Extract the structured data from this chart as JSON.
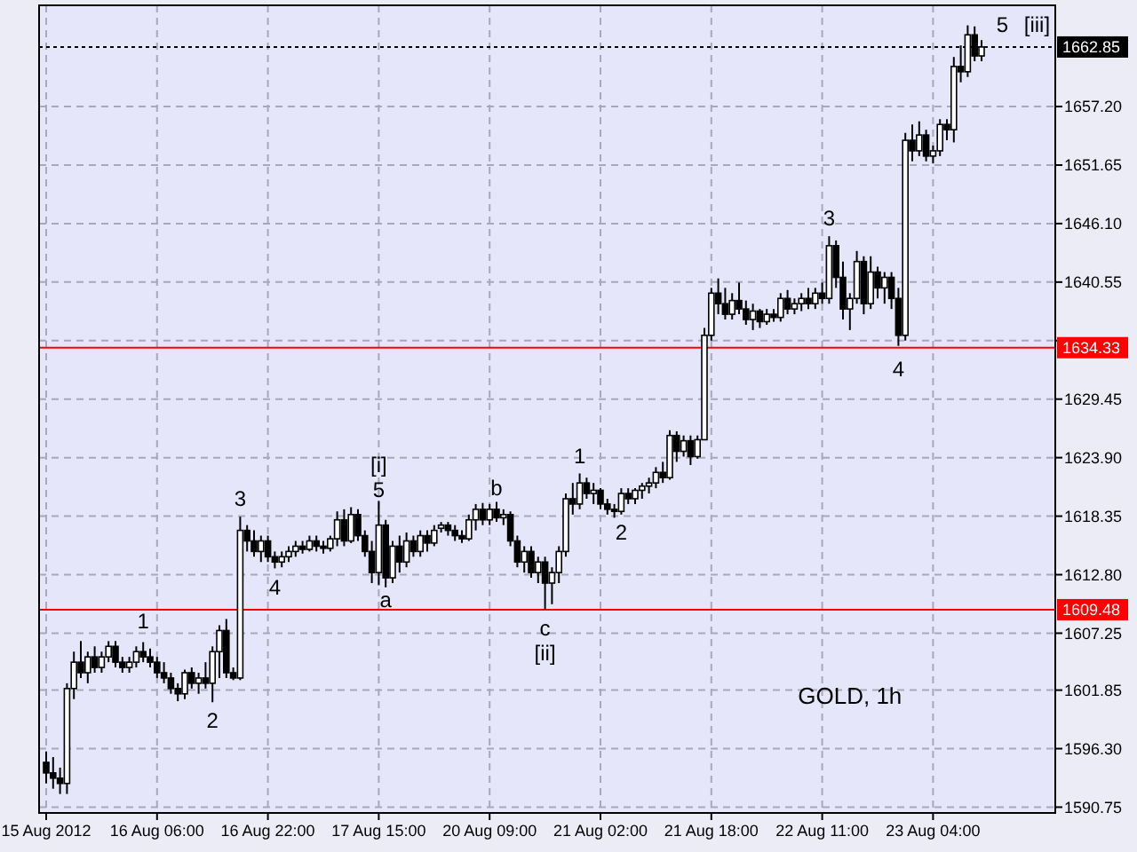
{
  "chart_data": {
    "type": "candlestick",
    "color": "#000000",
    "categories": [
      "15 Aug 2012",
      null,
      null,
      null,
      null,
      null,
      null,
      null,
      null,
      null,
      null,
      null,
      null,
      null,
      null,
      null,
      "16 Aug 06:00",
      null,
      null,
      null,
      null,
      null,
      null,
      null,
      null,
      null,
      null,
      null,
      null,
      null,
      null,
      null,
      "16 Aug 22:00",
      null,
      null,
      null,
      null,
      null,
      null,
      null,
      null,
      null,
      null,
      null,
      null,
      null,
      null,
      null,
      "17 Aug 15:00",
      null,
      null,
      null,
      null,
      null,
      null,
      null,
      null,
      null,
      null,
      null,
      null,
      null,
      null,
      null,
      "20 Aug 09:00",
      null,
      null,
      null,
      null,
      null,
      null,
      null,
      null,
      null,
      null,
      null,
      null,
      null,
      null,
      null,
      "21 Aug 02:00",
      null,
      null,
      null,
      null,
      null,
      null,
      null,
      null,
      null,
      null,
      null,
      null,
      null,
      null,
      null,
      "21 Aug 18:00",
      null,
      null,
      null,
      null,
      null,
      null,
      null,
      null,
      null,
      null,
      null,
      null,
      null,
      null,
      null,
      "22 Aug 11:00",
      null,
      null,
      null,
      null,
      null,
      null,
      null,
      null,
      null,
      null,
      null,
      null,
      null,
      null,
      null,
      "23 Aug 04:00",
      null,
      null,
      null,
      null,
      null,
      null,
      null
    ],
    "ohlc": [
      [
        1595.0,
        1596.0,
        1593.0,
        1594.0
      ],
      [
        1594.0,
        1595.5,
        1592.5,
        1593.5
      ],
      [
        1593.5,
        1594.5,
        1592.0,
        1593.0
      ],
      [
        1593.0,
        1602.5,
        1592.0,
        1602.0
      ],
      [
        1602.0,
        1605.5,
        1601.0,
        1604.5
      ],
      [
        1604.5,
        1606.5,
        1603.0,
        1603.5
      ],
      [
        1603.5,
        1605.5,
        1602.5,
        1605.0
      ],
      [
        1605.0,
        1606.0,
        1603.5,
        1604.0
      ],
      [
        1604.0,
        1605.5,
        1603.5,
        1605.0
      ],
      [
        1605.0,
        1606.5,
        1604.5,
        1606.0
      ],
      [
        1606.0,
        1606.5,
        1604.0,
        1604.5
      ],
      [
        1604.5,
        1605.0,
        1603.5,
        1604.0
      ],
      [
        1604.0,
        1605.0,
        1603.5,
        1604.5
      ],
      [
        1604.5,
        1606.0,
        1604.0,
        1605.5
      ],
      [
        1605.5,
        1606.4,
        1604.5,
        1605.0
      ],
      [
        1605.0,
        1605.8,
        1604.0,
        1604.5
      ],
      [
        1604.5,
        1605.0,
        1603.0,
        1603.5
      ],
      [
        1603.5,
        1604.5,
        1602.5,
        1603.0
      ],
      [
        1603.0,
        1603.5,
        1601.5,
        1602.0
      ],
      [
        1602.0,
        1602.5,
        1600.8,
        1601.5
      ],
      [
        1601.5,
        1603.8,
        1601.0,
        1603.5
      ],
      [
        1603.5,
        1604.0,
        1602.0,
        1602.5
      ],
      [
        1602.5,
        1603.5,
        1601.5,
        1603.0
      ],
      [
        1603.0,
        1604.5,
        1602.0,
        1602.5
      ],
      [
        1602.5,
        1606.0,
        1600.7,
        1605.5
      ],
      [
        1605.5,
        1608.0,
        1603.0,
        1607.5
      ],
      [
        1607.5,
        1608.6,
        1603.0,
        1603.5
      ],
      [
        1603.5,
        1604.0,
        1602.8,
        1603.0
      ],
      [
        1603.0,
        1618.3,
        1602.8,
        1617.0
      ],
      [
        1617.0,
        1617.5,
        1615.0,
        1616.0
      ],
      [
        1616.0,
        1617.0,
        1614.5,
        1615.0
      ],
      [
        1615.0,
        1616.5,
        1614.0,
        1616.0
      ],
      [
        1616.0,
        1616.5,
        1614.0,
        1614.5
      ],
      [
        1614.5,
        1615.0,
        1613.4,
        1614.0
      ],
      [
        1614.0,
        1615.0,
        1613.5,
        1614.5
      ],
      [
        1614.5,
        1615.5,
        1614.0,
        1615.0
      ],
      [
        1615.0,
        1616.0,
        1614.5,
        1615.5
      ],
      [
        1615.5,
        1616.0,
        1614.8,
        1615.2
      ],
      [
        1615.2,
        1616.5,
        1615.0,
        1616.0
      ],
      [
        1616.0,
        1616.5,
        1615.0,
        1615.5
      ],
      [
        1615.5,
        1616.0,
        1614.8,
        1615.3
      ],
      [
        1615.3,
        1616.5,
        1615.0,
        1616.2
      ],
      [
        1616.2,
        1618.8,
        1615.5,
        1618.0
      ],
      [
        1618.0,
        1619.0,
        1615.5,
        1616.0
      ],
      [
        1616.0,
        1619.2,
        1615.8,
        1618.5
      ],
      [
        1618.5,
        1619.0,
        1616.0,
        1616.5
      ],
      [
        1616.5,
        1617.0,
        1614.5,
        1615.0
      ],
      [
        1615.0,
        1616.0,
        1612.0,
        1613.0
      ],
      [
        1613.0,
        1619.8,
        1611.8,
        1617.5
      ],
      [
        1617.5,
        1618.0,
        1611.6,
        1612.5
      ],
      [
        1612.5,
        1616.0,
        1612.0,
        1615.5
      ],
      [
        1615.5,
        1616.5,
        1613.0,
        1614.0
      ],
      [
        1614.0,
        1616.8,
        1613.5,
        1616.0
      ],
      [
        1616.0,
        1616.5,
        1614.5,
        1615.0
      ],
      [
        1615.0,
        1617.0,
        1614.5,
        1616.5
      ],
      [
        1616.5,
        1617.0,
        1615.0,
        1615.8
      ],
      [
        1615.8,
        1617.5,
        1615.5,
        1617.0
      ],
      [
        1617.2,
        1617.8,
        1616.8,
        1617.5
      ],
      [
        1617.5,
        1617.8,
        1616.5,
        1617.0
      ],
      [
        1617.0,
        1617.5,
        1616.0,
        1616.5
      ],
      [
        1616.5,
        1617.0,
        1615.8,
        1616.2
      ],
      [
        1616.2,
        1618.5,
        1616.0,
        1618.0
      ],
      [
        1618.0,
        1619.5,
        1617.0,
        1619.0
      ],
      [
        1619.0,
        1619.6,
        1617.5,
        1618.0
      ],
      [
        1618.0,
        1619.5,
        1617.5,
        1619.0
      ],
      [
        1619.0,
        1619.7,
        1617.8,
        1618.2
      ],
      [
        1618.2,
        1619.0,
        1617.5,
        1618.5
      ],
      [
        1618.5,
        1618.8,
        1615.5,
        1616.0
      ],
      [
        1616.0,
        1616.5,
        1613.5,
        1614.0
      ],
      [
        1614.0,
        1615.5,
        1613.0,
        1615.0
      ],
      [
        1615.0,
        1615.5,
        1612.5,
        1613.0
      ],
      [
        1613.0,
        1614.5,
        1612.0,
        1614.0
      ],
      [
        1614.0,
        1614.5,
        1609.5,
        1612.0
      ],
      [
        1612.0,
        1613.5,
        1610.0,
        1613.0
      ],
      [
        1613.0,
        1615.5,
        1612.0,
        1615.0
      ],
      [
        1615.0,
        1620.5,
        1614.5,
        1620.0
      ],
      [
        1620.0,
        1621.5,
        1618.5,
        1619.5
      ],
      [
        1619.5,
        1622.4,
        1619.0,
        1621.5
      ],
      [
        1621.5,
        1622.0,
        1620.0,
        1620.5
      ],
      [
        1620.5,
        1621.5,
        1619.5,
        1620.8
      ],
      [
        1620.8,
        1621.0,
        1619.0,
        1619.5
      ],
      [
        1619.5,
        1620.0,
        1618.5,
        1619.0
      ],
      [
        1619.0,
        1619.5,
        1618.2,
        1618.8
      ],
      [
        1618.8,
        1621.0,
        1618.5,
        1620.5
      ],
      [
        1620.5,
        1621.0,
        1619.5,
        1620.0
      ],
      [
        1620.0,
        1621.0,
        1619.5,
        1620.8
      ],
      [
        1620.8,
        1621.5,
        1620.0,
        1621.2
      ],
      [
        1621.2,
        1622.0,
        1620.5,
        1621.5
      ],
      [
        1621.5,
        1623.0,
        1621.0,
        1622.5
      ],
      [
        1622.5,
        1623.5,
        1621.5,
        1622.0
      ],
      [
        1622.0,
        1626.5,
        1621.8,
        1626.0
      ],
      [
        1626.0,
        1626.4,
        1623.5,
        1624.5
      ],
      [
        1624.5,
        1626.0,
        1624.0,
        1625.5
      ],
      [
        1625.5,
        1626.0,
        1623.2,
        1624.0
      ],
      [
        1624.0,
        1626.0,
        1623.8,
        1625.6
      ],
      [
        1625.6,
        1636.2,
        1625.6,
        1635.5
      ],
      [
        1635.5,
        1640.0,
        1635.0,
        1639.5
      ],
      [
        1639.5,
        1640.9,
        1637.5,
        1638.5
      ],
      [
        1638.5,
        1640.0,
        1637.0,
        1637.5
      ],
      [
        1637.5,
        1639.5,
        1637.0,
        1638.8
      ],
      [
        1638.8,
        1640.5,
        1637.5,
        1638.0
      ],
      [
        1638.0,
        1638.8,
        1636.5,
        1637.0
      ],
      [
        1637.0,
        1638.5,
        1636.0,
        1637.8
      ],
      [
        1637.8,
        1638.0,
        1636.2,
        1636.8
      ],
      [
        1636.8,
        1638.0,
        1636.5,
        1637.5
      ],
      [
        1637.5,
        1638.0,
        1636.8,
        1637.2
      ],
      [
        1637.2,
        1639.5,
        1636.8,
        1639.0
      ],
      [
        1639.0,
        1639.8,
        1637.5,
        1638.0
      ],
      [
        1638.0,
        1639.0,
        1637.5,
        1638.5
      ],
      [
        1638.5,
        1639.5,
        1637.8,
        1639.0
      ],
      [
        1639.0,
        1640.0,
        1638.0,
        1638.5
      ],
      [
        1638.5,
        1640.0,
        1638.0,
        1639.5
      ],
      [
        1639.5,
        1640.5,
        1638.5,
        1639.0
      ],
      [
        1639.0,
        1644.9,
        1638.5,
        1644.0
      ],
      [
        1644.0,
        1644.5,
        1640.0,
        1641.0
      ],
      [
        1641.0,
        1642.5,
        1637.0,
        1638.0
      ],
      [
        1638.0,
        1639.5,
        1636.0,
        1639.0
      ],
      [
        1639.0,
        1643.5,
        1638.5,
        1642.5
      ],
      [
        1642.5,
        1643.0,
        1637.5,
        1638.5
      ],
      [
        1638.5,
        1643.0,
        1638.0,
        1641.5
      ],
      [
        1641.5,
        1642.0,
        1639.0,
        1640.0
      ],
      [
        1640.0,
        1641.5,
        1638.5,
        1641.0
      ],
      [
        1641.0,
        1641.5,
        1638.0,
        1639.0
      ],
      [
        1639.0,
        1640.0,
        1634.5,
        1635.5
      ],
      [
        1635.5,
        1654.7,
        1635.0,
        1654.0
      ],
      [
        1654.0,
        1655.5,
        1652.0,
        1653.0
      ],
      [
        1653.0,
        1655.8,
        1652.5,
        1654.5
      ],
      [
        1654.5,
        1655.0,
        1652.0,
        1652.5
      ],
      [
        1652.5,
        1653.5,
        1651.8,
        1653.0
      ],
      [
        1653.0,
        1656.0,
        1652.5,
        1655.5
      ],
      [
        1655.5,
        1656.0,
        1654.0,
        1655.0
      ],
      [
        1655.0,
        1661.9,
        1653.8,
        1661.0
      ],
      [
        1661.0,
        1663.0,
        1659.5,
        1660.5
      ],
      [
        1660.5,
        1664.9,
        1660.0,
        1664.0
      ],
      [
        1664.0,
        1664.8,
        1661.5,
        1662.0
      ],
      [
        1662.0,
        1663.5,
        1661.5,
        1662.85
      ]
    ],
    "ylim": [
      1590.2,
      1666.8
    ],
    "yticks": [
      1590.75,
      {
        "value": 1596.3,
        "label": "1596.30"
      },
      1601.85,
      1607.25,
      {
        "value": 1612.8,
        "label": "1612.80"
      },
      1618.35,
      {
        "value": 1623.9,
        "label": "1623.90"
      },
      1629.45,
      {
        "value": 1635,
        "label": null
      },
      1640.55,
      {
        "value": 1646.1,
        "label": "1646.10"
      },
      1651.65,
      {
        "value": 1657.2,
        "label": "1657.20"
      }
    ],
    "grid": true,
    "ref_lines": [
      {
        "axis": "y",
        "value": 1634.33,
        "label": "1634.33",
        "color": "#ff0000"
      },
      {
        "axis": "y",
        "value": 1609.48,
        "label": "1609.48",
        "color": "#ff0000"
      },
      {
        "axis": "y",
        "value": 1662.85,
        "label": "1662.85",
        "color": "#000000",
        "line_style": "dotted"
      }
    ],
    "annotations": [
      "1",
      "2",
      "3",
      "4",
      "[i]",
      "5",
      "a",
      "b",
      "c",
      "[ii]",
      "1",
      "2",
      "3",
      "4",
      "5",
      "[iii]",
      "GOLD, 1h"
    ]
  }
}
